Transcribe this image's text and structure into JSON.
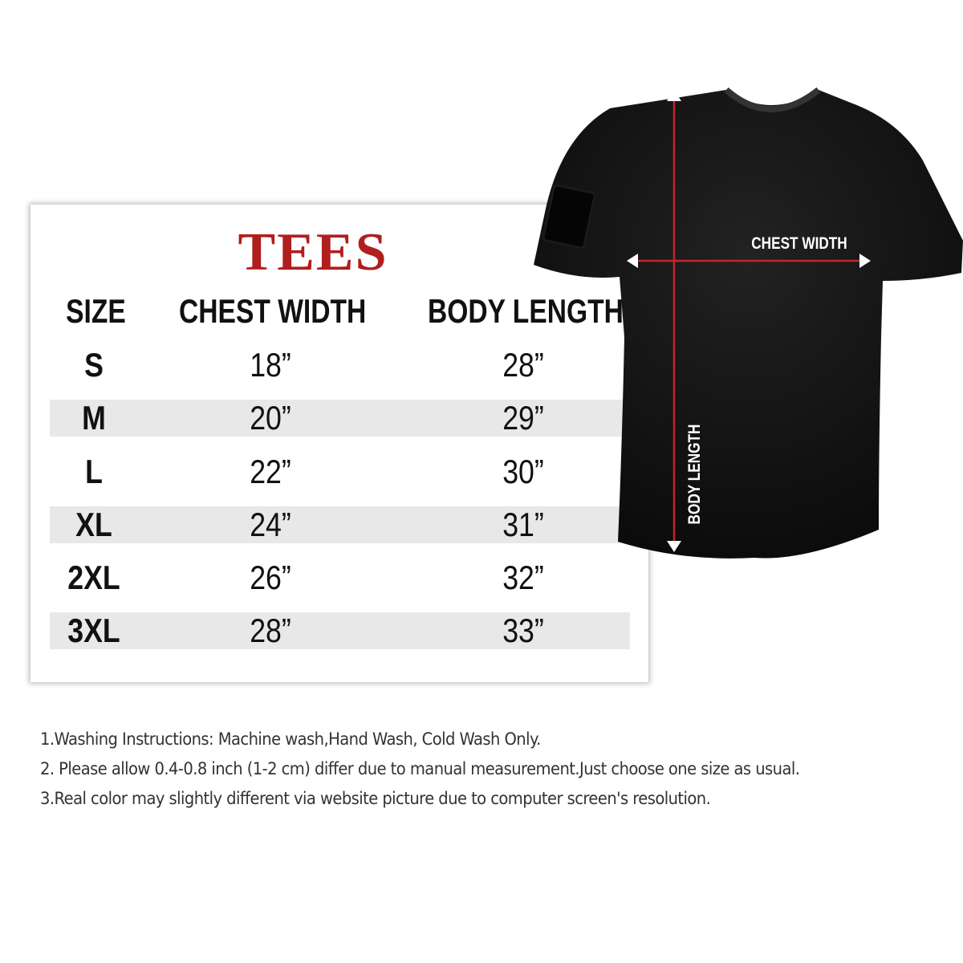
{
  "brand": "TEES",
  "table": {
    "headers": [
      "SIZE",
      "CHEST WIDTH",
      "BODY LENGTH"
    ],
    "rows": [
      {
        "size": "S",
        "chest": "18”",
        "body": "28”"
      },
      {
        "size": "M",
        "chest": "20”",
        "body": "29”"
      },
      {
        "size": "L",
        "chest": "22”",
        "body": "30”"
      },
      {
        "size": "XL",
        "chest": "24”",
        "body": "31”"
      },
      {
        "size": "2XL",
        "chest": "26”",
        "body": "32”"
      },
      {
        "size": "3XL",
        "chest": "28”",
        "body": "33”"
      }
    ]
  },
  "diagram": {
    "chest_label": "CHEST WIDTH",
    "body_label": "BODY LENGTH",
    "shirt_color": "#111111",
    "measure_color": "#c0262b"
  },
  "notes": [
    "1.Washing Instructions: Machine wash,Hand Wash, Cold Wash Only.",
    "2. Please allow 0.4-0.8 inch (1-2 cm) differ due to manual measurement.Just choose one size as usual.",
    "3.Real color may slightly different via website picture due to computer screen's resolution."
  ]
}
